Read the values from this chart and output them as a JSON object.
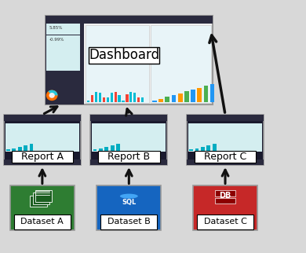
{
  "bg_color": "#d8d8d8",
  "dashboard_label": "Dashboard",
  "report_labels": [
    "Report A",
    "Report B",
    "Report C"
  ],
  "dataset_labels": [
    "Dataset A",
    "Dataset B",
    "Dataset C"
  ],
  "dataset_colors": [
    "#2e7d32",
    "#1565c0",
    "#c62828"
  ],
  "dataset_icon_colors": [
    "#1b5e20",
    "#0d47a1",
    "#8B0000"
  ],
  "arrow_color": "#111111",
  "dashboard_fontsize": 12,
  "report_fontsize": 9,
  "dataset_fontsize": 8,
  "figsize": [
    3.9,
    3.22
  ],
  "dpi": 100,
  "dark_bg": "#1a1a2e",
  "chart_teal": "#b2dfdb",
  "border_gray": "#999999"
}
